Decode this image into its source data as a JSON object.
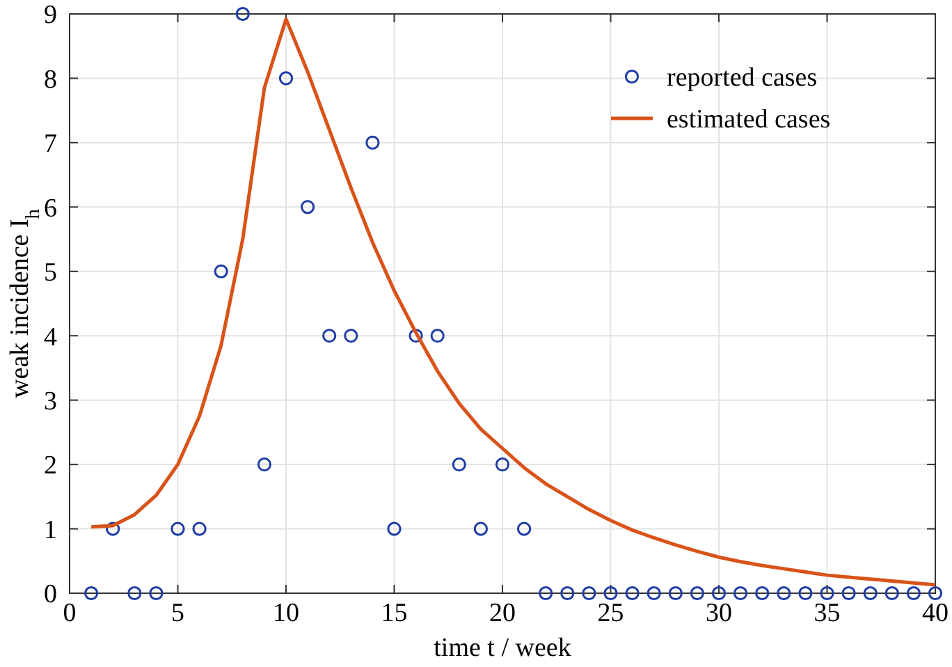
{
  "chart_data": {
    "type": "scatter",
    "xlabel": "time t / week",
    "ylabel": "weak incidence I$_{h}$",
    "xlim": [
      0,
      40
    ],
    "xticks": [
      0,
      5,
      10,
      15,
      20,
      25,
      30,
      35,
      40
    ],
    "ylim": [
      0,
      9
    ],
    "yticks": [
      0,
      1,
      2,
      3,
      4,
      5,
      6,
      7,
      8,
      9
    ],
    "grid": true,
    "legend": "top right",
    "series": [
      {
        "name": "reported cases",
        "marker": "circle",
        "color": "#1f3ca6",
        "x": [
          1,
          2,
          3,
          4,
          5,
          6,
          7,
          8,
          9,
          10,
          11,
          12,
          13,
          14,
          15,
          16,
          17,
          18,
          19,
          20,
          21,
          22,
          23,
          24,
          25,
          26,
          27,
          28,
          29,
          30,
          31,
          32,
          33,
          34,
          35,
          36,
          37,
          38,
          39,
          40
        ],
        "values": [
          0,
          1,
          0,
          0,
          1,
          1,
          5,
          9,
          2,
          8,
          6,
          4,
          4,
          7,
          1,
          4,
          4,
          2,
          1,
          2,
          1,
          0,
          0,
          0,
          0,
          0,
          0,
          0,
          0,
          0,
          0,
          0,
          0,
          0,
          0,
          0,
          0,
          0,
          0,
          0
        ]
      },
      {
        "name": "estimated cases",
        "type": "line",
        "line_style": "solid",
        "color": "#d95319",
        "x": [
          1,
          2,
          3,
          4,
          5,
          6,
          7,
          8,
          9,
          10,
          11,
          12,
          13,
          14,
          15,
          16,
          17,
          18,
          19,
          20,
          21,
          22,
          23,
          24,
          25,
          26,
          27,
          28,
          29,
          30,
          31,
          32,
          33,
          34,
          35,
          36,
          37,
          38,
          39,
          40
        ],
        "values": [
          1.03,
          1.05,
          1.22,
          1.52,
          2.0,
          2.75,
          3.85,
          5.5,
          7.85,
          8.92,
          8.1,
          7.2,
          6.3,
          5.45,
          4.7,
          4.05,
          3.45,
          2.95,
          2.55,
          2.25,
          1.95,
          1.7,
          1.5,
          1.3,
          1.13,
          0.98,
          0.86,
          0.75,
          0.65,
          0.56,
          0.49,
          0.43,
          0.38,
          0.33,
          0.28,
          0.25,
          0.22,
          0.19,
          0.16,
          0.13
        ]
      }
    ]
  }
}
